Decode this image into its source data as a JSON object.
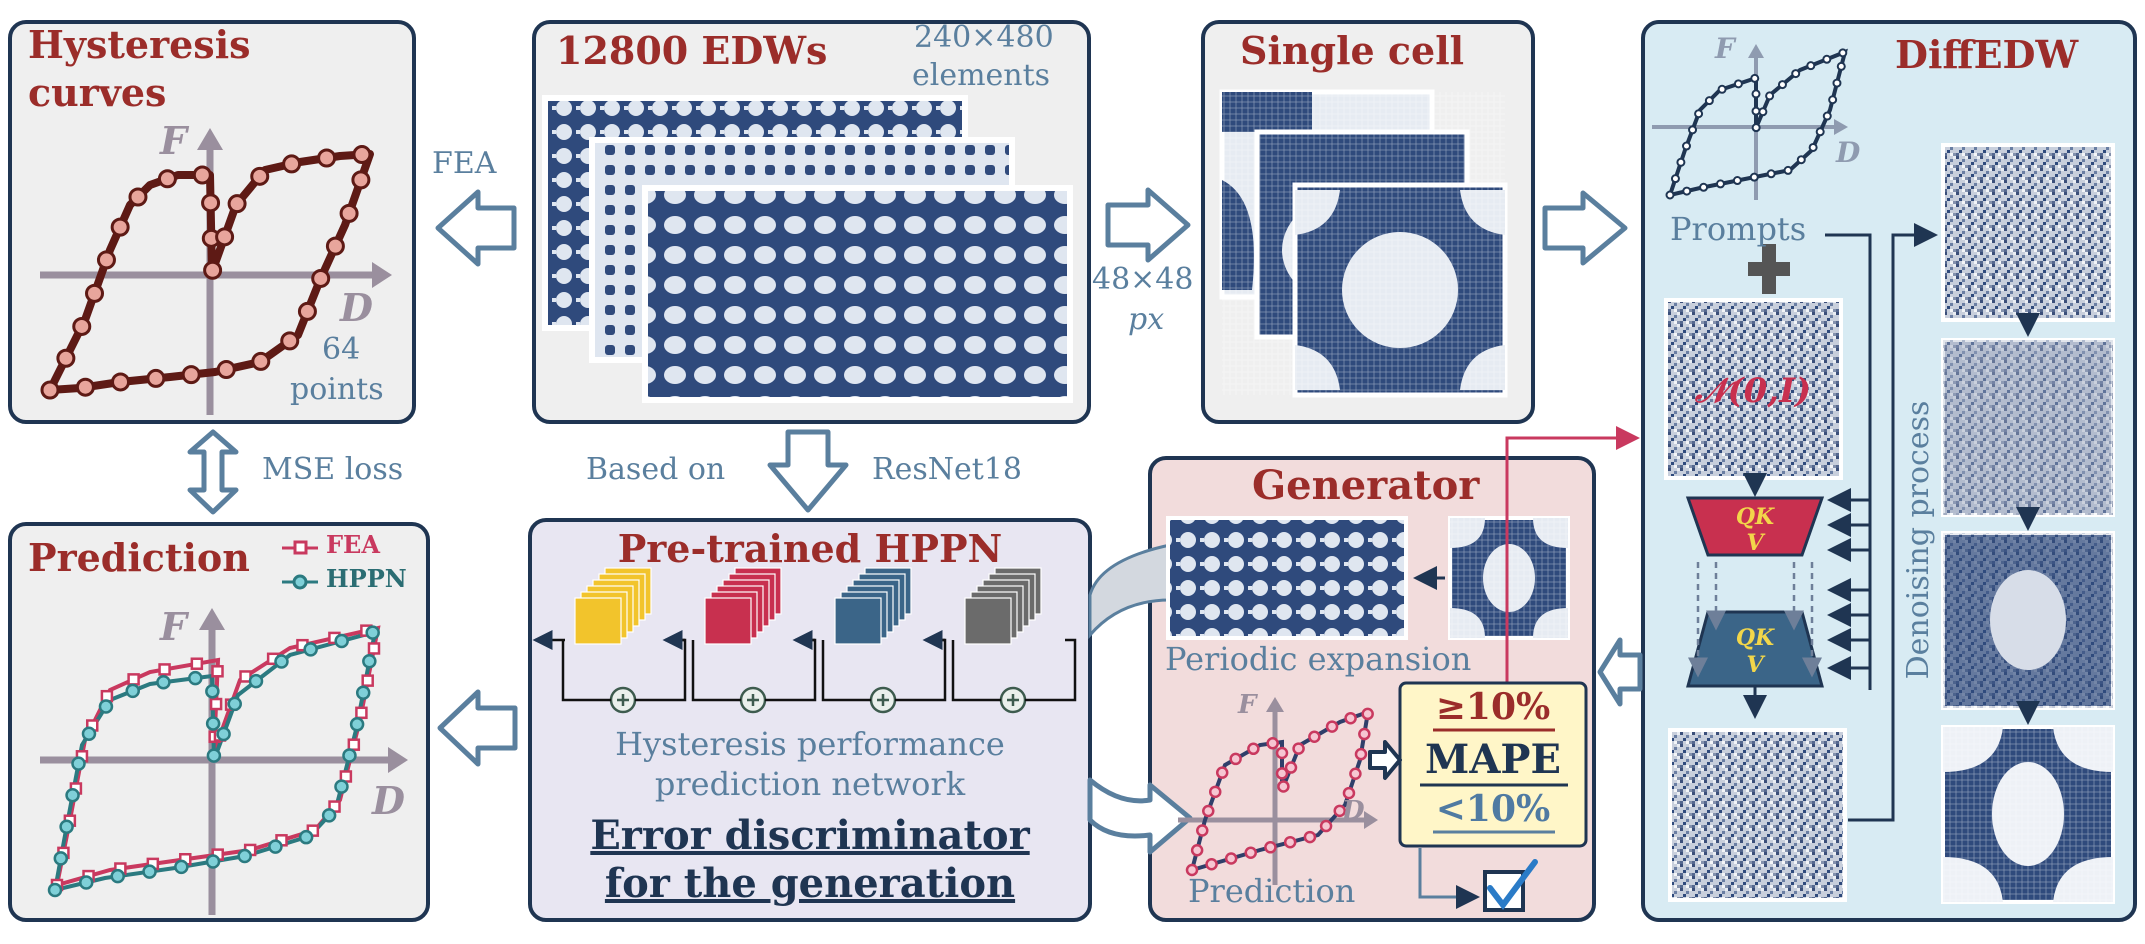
{
  "panels": {
    "hysteresis": {
      "title_line1": "Hysteresis",
      "title_line2": "curves",
      "axis_f": "F",
      "axis_d": "D",
      "note_line1": "64",
      "note_line2": "points"
    },
    "edws": {
      "title": "12800 EDWs",
      "note_line1": "240×480",
      "note_line2": "elements"
    },
    "single_cell": {
      "title": "Single cell"
    },
    "diffedw": {
      "title": "DiffEDW",
      "axis_f": "F",
      "axis_d": "D",
      "prompts": "Prompts",
      "noise": "𝒩(0,I)",
      "qkv_q": "QK",
      "qkv_v": "V",
      "denoising": "Denoising process"
    },
    "prediction": {
      "title": "Prediction",
      "legend_fea": "FEA",
      "legend_hppn": "HPPN",
      "axis_f": "F",
      "axis_d": "D"
    },
    "hppn": {
      "title": "Pre-trained HPPN",
      "desc_line1": "Hysteresis performance",
      "desc_line2": "prediction network",
      "disc_line1": "Error discriminator",
      "disc_line2": "for the generation"
    },
    "generator": {
      "title": "Generator",
      "periodic": "Periodic expansion",
      "prediction": "Prediction",
      "axis_f": "F",
      "axis_d": "D",
      "mape_high": "≥10%",
      "mape": "MAPE",
      "mape_low": "<10%"
    }
  },
  "labels": {
    "fea": "FEA",
    "px_line1": "48×48",
    "px_line2": "px",
    "mse": "MSE loss",
    "based_on": "Based on",
    "resnet": "ResNet18"
  },
  "colors": {
    "frame": "#1f3552",
    "title_red": "#9b2d2a",
    "label_blue": "#5a7f9e",
    "pattern_navy": "#2f4a7c",
    "fea_pink": "#c9395f",
    "hppn_teal": "#2b8e96",
    "curve_brown": "#6b1f1a",
    "qk_yellow": "#f2d64a"
  }
}
